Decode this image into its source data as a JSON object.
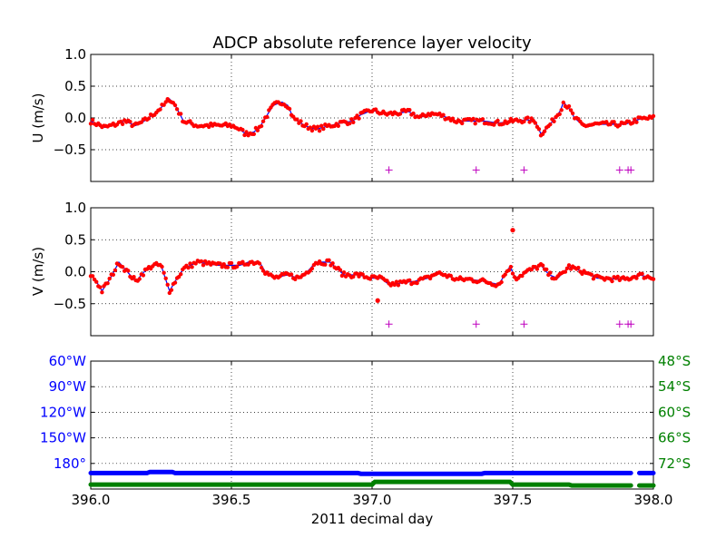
{
  "figure": {
    "title": "ADCP absolute reference layer velocity",
    "xlabel": "2011 decimal day"
  },
  "colors": {
    "line": "#0000ff",
    "points": "#ff0000",
    "flags": "#bf00bf",
    "lon": "#0000ff",
    "lat": "#008000",
    "grid": "#000000"
  },
  "chart_data": [
    {
      "type": "line",
      "panel": "u",
      "ylabel": "U (m/s)",
      "xlim": [
        396.0,
        398.0
      ],
      "ylim": [
        -1.0,
        1.0
      ],
      "yticks": [
        "1.0",
        "0.5",
        "0.0",
        "−0.5"
      ],
      "ytick_values": [
        1.0,
        0.5,
        0.0,
        -0.5
      ],
      "xticks": [
        396.0,
        396.5,
        397.0,
        397.5,
        398.0
      ],
      "grid": true,
      "x": [
        396.0,
        396.05,
        396.09,
        396.12,
        396.16,
        396.19,
        396.22,
        396.26,
        396.28,
        396.3,
        396.33,
        396.38,
        396.45,
        396.5,
        396.52,
        396.55,
        396.58,
        396.6,
        396.62,
        396.65,
        396.68,
        396.7,
        396.72,
        396.76,
        396.8,
        396.85,
        396.9,
        396.93,
        396.96,
        397.0,
        397.05,
        397.1,
        397.13,
        397.17,
        397.2,
        397.24,
        397.3,
        397.35,
        397.4,
        397.45,
        397.5,
        397.55,
        397.58,
        397.6,
        397.63,
        397.65,
        397.67,
        397.68,
        397.7,
        397.72,
        397.75,
        397.8,
        397.9,
        397.95,
        398.0
      ],
      "series": [
        {
          "values": [
            -0.05,
            -0.15,
            -0.1,
            -0.05,
            -0.12,
            -0.05,
            0.05,
            0.2,
            0.3,
            0.2,
            -0.05,
            -0.12,
            -0.12,
            -0.12,
            -0.15,
            -0.25,
            -0.22,
            -0.15,
            0.0,
            0.2,
            0.25,
            0.2,
            0.0,
            -0.12,
            -0.18,
            -0.12,
            -0.07,
            -0.05,
            0.05,
            0.12,
            0.06,
            0.08,
            0.1,
            0.0,
            0.07,
            0.05,
            -0.05,
            -0.05,
            -0.05,
            -0.08,
            -0.05,
            -0.03,
            -0.05,
            -0.25,
            -0.12,
            0.0,
            0.12,
            0.25,
            0.15,
            0.0,
            -0.12,
            -0.1,
            -0.1,
            -0.02,
            0.0
          ]
        }
      ],
      "flag_x": [
        397.06,
        397.37,
        397.54,
        397.88,
        397.91,
        397.92
      ],
      "flag_y": -0.82
    },
    {
      "type": "line",
      "panel": "v",
      "ylabel": "V (m/s)",
      "xlim": [
        396.0,
        398.0
      ],
      "ylim": [
        -1.0,
        1.0
      ],
      "yticks": [
        "1.0",
        "0.5",
        "0.0",
        "−0.5"
      ],
      "ytick_values": [
        1.0,
        0.5,
        0.0,
        -0.5
      ],
      "xticks": [
        396.0,
        396.5,
        397.0,
        397.5,
        398.0
      ],
      "grid": true,
      "x": [
        396.0,
        396.02,
        396.04,
        396.07,
        396.1,
        396.13,
        396.16,
        396.19,
        396.22,
        396.25,
        396.28,
        396.3,
        396.33,
        396.38,
        396.45,
        396.5,
        396.53,
        396.56,
        396.6,
        396.62,
        396.65,
        396.7,
        396.74,
        396.77,
        396.8,
        396.85,
        396.9,
        396.95,
        397.0,
        397.03,
        397.06,
        397.1,
        397.15,
        397.2,
        397.23,
        397.26,
        397.3,
        397.35,
        397.4,
        397.45,
        397.49,
        397.51,
        397.55,
        397.6,
        397.63,
        397.66,
        397.7,
        397.75,
        397.8,
        397.9,
        397.95,
        398.0
      ],
      "series": [
        {
          "values": [
            -0.05,
            -0.15,
            -0.3,
            -0.1,
            0.15,
            0.0,
            -0.15,
            0.0,
            0.1,
            0.1,
            -0.3,
            -0.15,
            0.05,
            0.15,
            0.1,
            0.1,
            0.1,
            0.15,
            0.15,
            0.0,
            -0.1,
            -0.05,
            -0.1,
            0.0,
            0.15,
            0.15,
            -0.05,
            -0.05,
            -0.1,
            -0.1,
            -0.2,
            -0.18,
            -0.15,
            -0.1,
            -0.02,
            -0.05,
            -0.12,
            -0.12,
            -0.15,
            -0.2,
            0.08,
            -0.1,
            0.0,
            0.1,
            -0.05,
            -0.1,
            0.08,
            0.0,
            -0.1,
            -0.12,
            -0.05,
            -0.1
          ]
        }
      ],
      "outliers": [
        [
          397.5,
          0.65
        ],
        [
          397.02,
          -0.45
        ]
      ],
      "flag_x": [
        397.06,
        397.37,
        397.54,
        397.88,
        397.91,
        397.92
      ],
      "flag_y": -0.82
    },
    {
      "type": "scatter",
      "panel": "position",
      "xlim": [
        396.0,
        398.0
      ],
      "ylabel_left_ticks": [
        "60°W",
        "90°W",
        "120°W",
        "150°W",
        "180°"
      ],
      "left_tick_fracs": [
        0.0,
        0.2,
        0.4,
        0.6,
        0.8
      ],
      "ylabel_right_ticks": [
        "48°S",
        "54°S",
        "60°S",
        "66°S",
        "72°S"
      ],
      "right_tick_fracs": [
        0.0,
        0.2,
        0.4,
        0.6,
        0.8
      ],
      "xticks": [
        "396.0",
        "396.5",
        "397.0",
        "397.5",
        "398.0"
      ],
      "xtick_values": [
        396.0,
        396.5,
        397.0,
        397.5,
        398.0
      ],
      "grid": true,
      "series": [
        {
          "axis": "left",
          "level": 0.875,
          "gap": [
            397.92,
            397.95
          ]
        },
        {
          "axis": "right",
          "level": 0.965,
          "gap": [
            397.92,
            397.95
          ]
        }
      ]
    }
  ]
}
